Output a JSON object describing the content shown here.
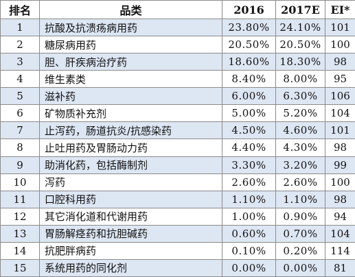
{
  "headers": {
    "rank": "排名",
    "category": "品类",
    "y2016": "2016",
    "y2017": "2017E",
    "ei": "EI*"
  },
  "rows": [
    {
      "rank": "1",
      "category": "抗酸及抗溃疡病用药",
      "y2016": "23.80%",
      "y2017": "24.10%",
      "ei": "101"
    },
    {
      "rank": "2",
      "category": "糖尿病用药",
      "y2016": "20.50%",
      "y2017": "20.50%",
      "ei": "100"
    },
    {
      "rank": "3",
      "category": "胆、肝疾病治疗药",
      "y2016": "18.60%",
      "y2017": "18.30%",
      "ei": "98"
    },
    {
      "rank": "4",
      "category": "维生素类",
      "y2016": "8.40%",
      "y2017": "8.00%",
      "ei": "95"
    },
    {
      "rank": "5",
      "category": "滋补药",
      "y2016": "6.00%",
      "y2017": "6.30%",
      "ei": "106"
    },
    {
      "rank": "6",
      "category": "矿物质补充剂",
      "y2016": "5.00%",
      "y2017": "5.20%",
      "ei": "104"
    },
    {
      "rank": "7",
      "category": "止泻药，肠道抗炎/抗感染药",
      "y2016": "4.50%",
      "y2017": "4.60%",
      "ei": "101"
    },
    {
      "rank": "8",
      "category": "止吐用药及胃肠动力药",
      "y2016": "4.40%",
      "y2017": "4.30%",
      "ei": "98"
    },
    {
      "rank": "9",
      "category": "助消化药，包括酶制剂",
      "y2016": "3.30%",
      "y2017": "3.20%",
      "ei": "99"
    },
    {
      "rank": "10",
      "category": "泻药",
      "y2016": "2.60%",
      "y2017": "2.60%",
      "ei": "100"
    },
    {
      "rank": "11",
      "category": "口腔科用药",
      "y2016": "1.10%",
      "y2017": "1.10%",
      "ei": "98"
    },
    {
      "rank": "12",
      "category": "其它消化道和代谢用药",
      "y2016": "1.00%",
      "y2017": "0.90%",
      "ei": "94"
    },
    {
      "rank": "13",
      "category": "胃肠解痉药和抗胆碱药",
      "y2016": "0.60%",
      "y2017": "0.70%",
      "ei": "104"
    },
    {
      "rank": "14",
      "category": "抗肥胖病药",
      "y2016": "0.10%",
      "y2017": "0.20%",
      "ei": "114"
    },
    {
      "rank": "15",
      "category": "系统用药的同化剂",
      "y2016": "0.00%",
      "y2017": "0.00%",
      "ei": "81"
    }
  ],
  "colors": {
    "alt_row_bg": "#dde6f3",
    "border": "#8a8a8a"
  }
}
